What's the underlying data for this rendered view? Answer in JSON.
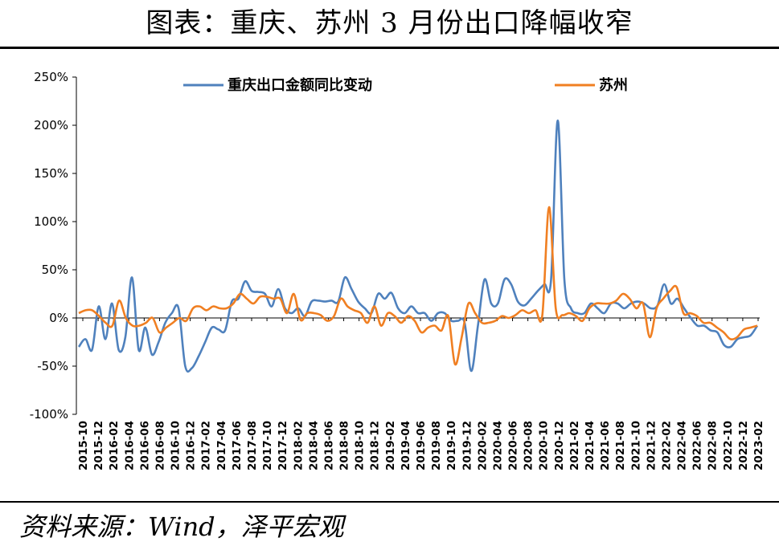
{
  "header": {
    "title": "图表：重庆、苏州 3 月份出口降幅收窄"
  },
  "footer": {
    "source": "资料来源：Wind，泽平宏观"
  },
  "colors": {
    "series_blue": "#4f81bd",
    "series_orange": "#f07f22"
  },
  "chart_data": {
    "type": "line",
    "title": "",
    "xlabel": "",
    "ylabel": "",
    "ylim": [
      -100,
      250
    ],
    "yticks": [
      "250%",
      "200%",
      "150%",
      "100%",
      "50%",
      "0%",
      "-50%",
      "-100%"
    ],
    "ytick_values": [
      250,
      200,
      150,
      100,
      50,
      0,
      -50,
      -100
    ],
    "xtick_labels": [
      "2015-10",
      "2015-12",
      "2016-02",
      "2016-04",
      "2016-06",
      "2016-08",
      "2016-10",
      "2016-12",
      "2017-02",
      "2017-04",
      "2017-06",
      "2017-08",
      "2017-10",
      "2017-12",
      "2018-02",
      "2018-04",
      "2018-06",
      "2018-08",
      "2018-10",
      "2018-12",
      "2019-02",
      "2019-04",
      "2019-06",
      "2019-08",
      "2019-10",
      "2019-12",
      "2020-02",
      "2020-04",
      "2020-06",
      "2020-08",
      "2020-10",
      "2020-12",
      "2021-02",
      "2021-04",
      "2021-06",
      "2021-08",
      "2021-10",
      "2021-12",
      "2022-02",
      "2022-04",
      "2022-06",
      "2022-08",
      "2022-10",
      "2022-12",
      "2023-02"
    ],
    "legend_position": "top",
    "series": [
      {
        "name": "重庆出口金额同比变动",
        "color": "#4f81bd",
        "values": [
          -30,
          -22,
          -33,
          12,
          -22,
          15,
          -33,
          -20,
          42,
          -33,
          -10,
          -38,
          -25,
          -5,
          5,
          10,
          -50,
          -52,
          -40,
          -25,
          -10,
          -12,
          -13,
          17,
          20,
          38,
          28,
          27,
          25,
          12,
          30,
          10,
          5,
          10,
          2,
          17,
          18,
          17,
          18,
          17,
          42,
          30,
          17,
          10,
          5,
          25,
          20,
          26,
          10,
          5,
          12,
          5,
          5,
          -3,
          5,
          5,
          -3,
          -3,
          -5,
          -55,
          -8,
          40,
          15,
          15,
          40,
          35,
          17,
          13,
          20,
          28,
          35,
          40,
          205,
          40,
          10,
          5,
          5,
          15,
          10,
          5,
          15,
          15,
          10,
          15,
          17,
          15,
          10,
          13,
          35,
          15,
          20,
          10,
          0,
          -8,
          -8,
          -13,
          -15,
          -28,
          -30,
          -22,
          -20,
          -18,
          -8
        ]
      },
      {
        "name": "苏州",
        "color": "#f07f22",
        "values": [
          5,
          8,
          8,
          2,
          -5,
          -8,
          18,
          0,
          -8,
          -8,
          -5,
          0,
          -15,
          -10,
          -5,
          0,
          -3,
          10,
          12,
          8,
          12,
          10,
          10,
          15,
          25,
          20,
          15,
          22,
          22,
          20,
          20,
          5,
          25,
          -2,
          5,
          5,
          3,
          -3,
          2,
          20,
          12,
          8,
          5,
          -5,
          12,
          -8,
          5,
          2,
          -5,
          2,
          -3,
          -15,
          -10,
          -8,
          -13,
          2,
          -48,
          -20,
          15,
          5,
          -5,
          -5,
          -3,
          2,
          0,
          3,
          8,
          5,
          8,
          3,
          115,
          10,
          3,
          5,
          2,
          -3,
          10,
          15,
          15,
          15,
          18,
          25,
          20,
          10,
          15,
          -20,
          10,
          20,
          28,
          32,
          5,
          5,
          2,
          -5,
          -5,
          -10,
          -15,
          -22,
          -20,
          -12,
          -10,
          -8
        ]
      }
    ]
  }
}
